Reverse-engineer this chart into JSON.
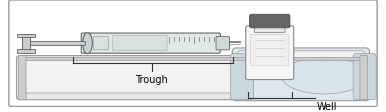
{
  "fig_width": 3.86,
  "fig_height": 1.13,
  "dpi": 100,
  "bg_color": "#ffffff",
  "border_color": "#999999",
  "trough_label": "Trough",
  "well_label": "Well",
  "font_size": 7,
  "colors": {
    "tray_fill": "#e8e8e8",
    "tray_edge": "#999999",
    "tray_inner": "#f2f2f2",
    "syringe_body": "#e0e8e8",
    "syringe_edge": "#888888",
    "syringe_dark": "#666666",
    "vial_body": "#f5f5f5",
    "vial_edge": "#888888",
    "vial_cap": "#666666",
    "well_fill": "#dde8ee",
    "well_edge": "#999999",
    "needle": "#aaaaaa",
    "plunger": "#cccccc",
    "label_line": "#333333"
  }
}
